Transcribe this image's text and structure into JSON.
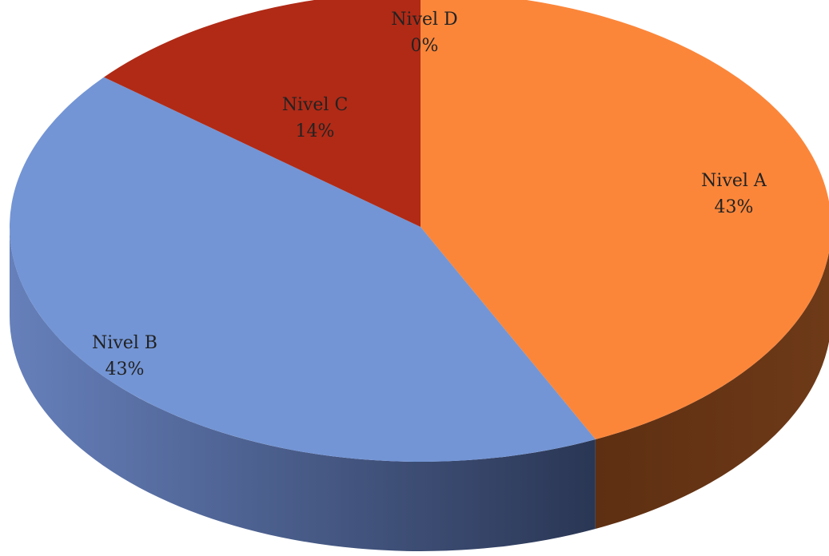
{
  "chart_data": {
    "type": "pie",
    "three_d": true,
    "title": "",
    "start_angle_deg": 0,
    "direction": "clockwise",
    "slices": [
      {
        "label": "Nivel A",
        "percent_label": "43%",
        "value": 43,
        "color": "#fb863a",
        "side_color": "#6b3616"
      },
      {
        "label": "Nivel B",
        "percent_label": "43%",
        "value": 43,
        "color": "#7395d5",
        "side_color": "#4b5f8e"
      },
      {
        "label": "Nivel C",
        "percent_label": "14%",
        "value": 14,
        "color": "#b02a16",
        "side_color": "#6a1a0e"
      },
      {
        "label": "Nivel D",
        "percent_label": "0%",
        "value": 0,
        "color": "#9bbb59",
        "side_color": "#5f7236"
      }
    ],
    "legend": "none"
  }
}
